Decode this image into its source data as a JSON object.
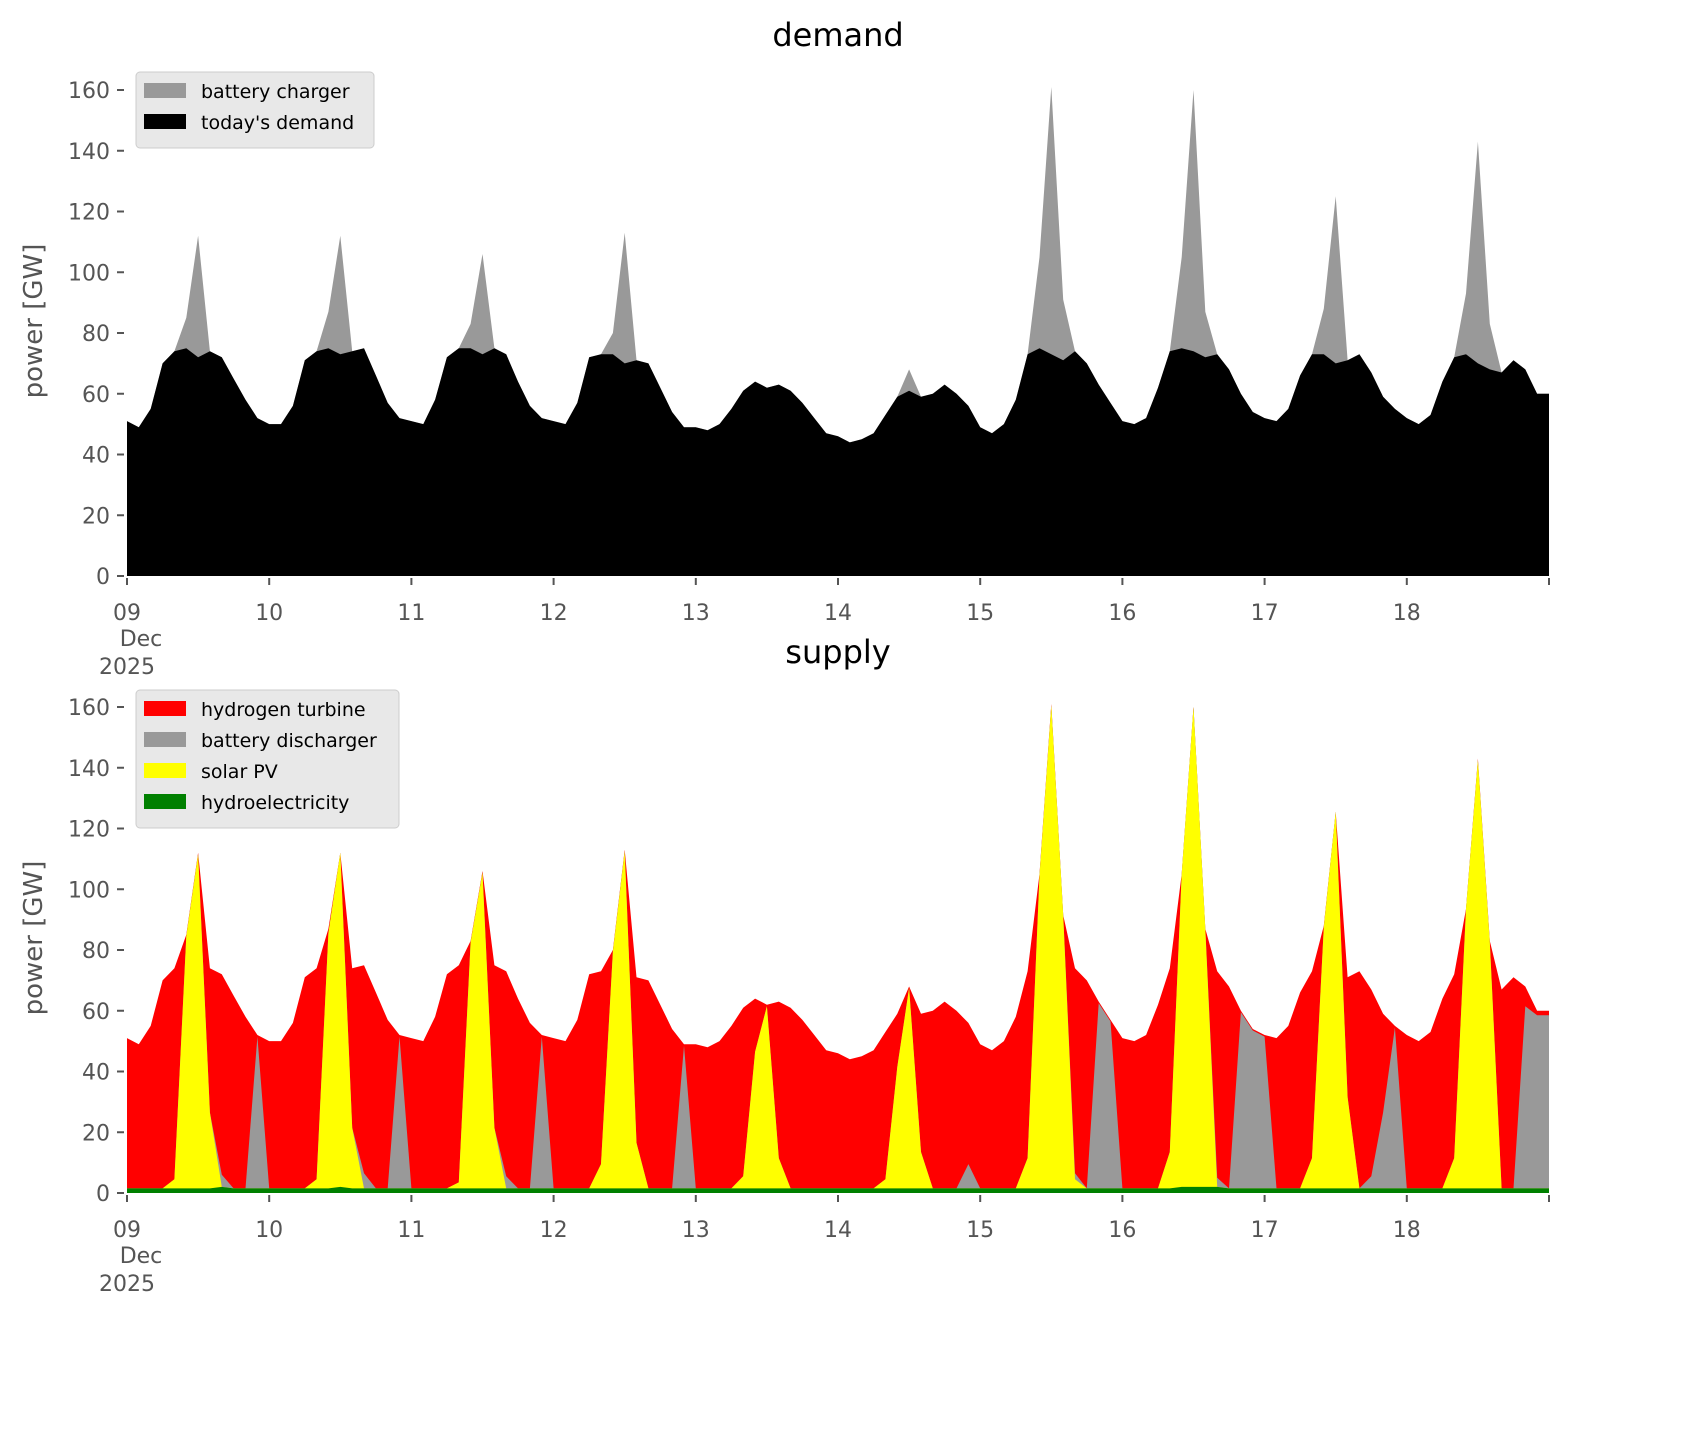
{
  "chart_data": {
    "type": "area",
    "time_step_hours": 2,
    "x_range_days": [
      0,
      10
    ],
    "xticks": [
      {
        "label": "09",
        "sub1": "Dec",
        "sub2": "2025"
      },
      {
        "label": "10"
      },
      {
        "label": "11"
      },
      {
        "label": "12"
      },
      {
        "label": "13"
      },
      {
        "label": "14"
      },
      {
        "label": "15"
      },
      {
        "label": "16"
      },
      {
        "label": "17"
      },
      {
        "label": "18"
      }
    ],
    "yticks": [
      0,
      20,
      40,
      60,
      80,
      100,
      120,
      140,
      160
    ],
    "ylim": [
      0,
      168
    ],
    "panels": [
      {
        "title": "demand",
        "ylabel": "power [GW]",
        "legend_position": "top-left",
        "legend": [
          {
            "label": "battery charger",
            "color": "#999999"
          },
          {
            "label": "today's demand",
            "color": "#000000"
          }
        ]
      },
      {
        "title": "supply",
        "ylabel": "power [GW]",
        "legend_position": "top-left",
        "legend": [
          {
            "label": "hydrogen turbine",
            "color": "#ff0000"
          },
          {
            "label": "battery discharger",
            "color": "#999999"
          },
          {
            "label": "solar PV",
            "color": "#ffff00"
          },
          {
            "label": "hydroelectricity",
            "color": "#008000"
          }
        ]
      }
    ],
    "days": [
      {
        "day": "09",
        "demand": [
          51,
          49,
          55,
          70,
          74,
          75,
          72,
          74,
          72,
          65,
          58,
          52
        ],
        "charger": [
          0,
          0,
          0,
          0,
          0,
          10,
          40,
          0,
          0,
          0,
          0,
          0
        ],
        "solar": [
          0,
          0,
          0,
          0,
          3,
          83,
          110,
          25,
          0,
          0,
          0,
          0
        ],
        "discharger": [
          0,
          0,
          0,
          0,
          0,
          0,
          0,
          0,
          4,
          0,
          0,
          50
        ],
        "hydro": [
          1.5,
          1.5,
          1.5,
          1.5,
          1.5,
          1.5,
          1.5,
          1.5,
          2,
          1.5,
          1.5,
          1.5
        ]
      },
      {
        "day": "10",
        "demand": [
          50,
          50,
          56,
          71,
          74,
          75,
          73,
          74,
          75,
          66,
          57,
          52
        ],
        "charger": [
          0,
          0,
          0,
          0,
          0,
          12,
          39,
          0,
          0,
          0,
          0,
          0
        ],
        "solar": [
          0,
          0,
          0,
          0,
          3,
          84,
          110,
          20,
          0,
          0,
          0,
          0
        ],
        "discharger": [
          0,
          0,
          0,
          0,
          0,
          0,
          0,
          0,
          5,
          0,
          0,
          50
        ],
        "hydro": [
          1.5,
          1.5,
          1.5,
          1.5,
          1.5,
          1.5,
          2,
          1.5,
          1.5,
          1.5,
          1.5,
          1.5
        ]
      },
      {
        "day": "11",
        "demand": [
          51,
          50,
          58,
          72,
          75,
          75,
          73,
          75,
          73,
          64,
          56,
          52
        ],
        "charger": [
          0,
          0,
          0,
          0,
          0,
          8,
          33,
          0,
          0,
          0,
          0,
          0
        ],
        "solar": [
          0,
          0,
          0,
          0,
          2,
          81,
          104,
          20,
          0,
          0,
          0,
          0
        ],
        "discharger": [
          0,
          0,
          0,
          0,
          0,
          0,
          0,
          0,
          4,
          0,
          0,
          50
        ],
        "hydro": [
          1.5,
          1.5,
          1.5,
          1.5,
          1.5,
          1.5,
          1.5,
          1.5,
          1.5,
          1.5,
          1.5,
          1.5
        ]
      },
      {
        "day": "12",
        "demand": [
          51,
          50,
          57,
          72,
          73,
          73,
          70,
          71,
          70,
          62,
          54,
          49
        ],
        "charger": [
          0,
          0,
          0,
          0,
          0,
          7,
          43,
          0,
          0,
          0,
          0,
          0
        ],
        "solar": [
          0,
          0,
          0,
          0,
          8,
          78,
          111,
          15,
          0,
          0,
          0,
          0
        ],
        "discharger": [
          0,
          0,
          0,
          0,
          0,
          0,
          0,
          0,
          0,
          0,
          0,
          47
        ],
        "hydro": [
          1.5,
          1.5,
          1.5,
          1.5,
          1.5,
          1.5,
          1.5,
          1.5,
          1.5,
          1.5,
          1.5,
          1.5
        ]
      },
      {
        "day": "13",
        "demand": [
          49,
          48,
          50,
          55,
          61,
          64,
          62,
          63,
          61,
          57,
          52,
          47
        ],
        "charger": [
          0,
          0,
          0,
          0,
          0,
          0,
          0,
          0,
          0,
          0,
          0,
          0
        ],
        "solar": [
          0,
          0,
          0,
          0,
          4,
          45,
          60,
          10,
          0,
          0,
          0,
          0
        ],
        "discharger": [
          0,
          0,
          0,
          0,
          0,
          0,
          0,
          0,
          0,
          0,
          0,
          0
        ],
        "hydro": [
          1.5,
          1.5,
          1.5,
          1.5,
          1.5,
          1.5,
          1.5,
          1.5,
          1.5,
          1.5,
          1.5,
          1.5
        ]
      },
      {
        "day": "14",
        "demand": [
          46,
          44,
          45,
          47,
          53,
          59,
          61,
          59,
          60,
          63,
          60,
          56
        ],
        "charger": [
          0,
          0,
          0,
          0,
          0,
          0,
          7,
          0,
          0,
          0,
          0,
          0
        ],
        "solar": [
          0,
          0,
          0,
          0,
          3,
          40,
          66,
          12,
          0,
          0,
          0,
          0
        ],
        "discharger": [
          0,
          0,
          0,
          0,
          0,
          0,
          0,
          0,
          0,
          0,
          0,
          8
        ],
        "hydro": [
          1.5,
          1.5,
          1.5,
          1.5,
          1.5,
          1.5,
          1.5,
          1.5,
          1.5,
          1.5,
          1.5,
          1.5
        ]
      },
      {
        "day": "15",
        "demand": [
          49,
          47,
          50,
          58,
          73,
          75,
          73,
          71,
          74,
          70,
          63,
          57
        ],
        "charger": [
          0,
          0,
          0,
          0,
          0,
          30,
          88,
          20,
          0,
          0,
          0,
          0
        ],
        "solar": [
          0,
          0,
          0,
          0,
          10,
          103,
          159,
          90,
          3,
          0,
          0,
          0
        ],
        "discharger": [
          0,
          0,
          0,
          0,
          0,
          0,
          0,
          0,
          2,
          0,
          61,
          55
        ],
        "hydro": [
          1.5,
          1.5,
          1.5,
          1.5,
          1.5,
          1.5,
          1.5,
          1.5,
          1.5,
          1.5,
          1.5,
          1.5
        ]
      },
      {
        "day": "16",
        "demand": [
          51,
          50,
          52,
          62,
          74,
          75,
          74,
          72,
          73,
          68,
          60,
          54
        ],
        "charger": [
          0,
          0,
          0,
          0,
          0,
          30,
          86,
          15,
          0,
          0,
          0,
          0
        ],
        "solar": [
          0,
          0,
          0,
          0,
          12,
          103,
          158,
          85,
          0,
          0,
          0,
          0
        ],
        "discharger": [
          0,
          0,
          0,
          0,
          0,
          0,
          0,
          0,
          3,
          0,
          58,
          52
        ],
        "hydro": [
          1.5,
          1.5,
          1.5,
          1.5,
          1.5,
          2,
          2,
          2,
          2,
          1.5,
          1.5,
          1.5
        ]
      },
      {
        "day": "17",
        "demand": [
          52,
          51,
          55,
          66,
          73,
          73,
          70,
          71,
          73,
          67,
          59,
          55
        ],
        "charger": [
          0,
          0,
          0,
          0,
          0,
          15,
          55,
          0,
          0,
          0,
          0,
          0
        ],
        "solar": [
          0,
          0,
          0,
          0,
          10,
          86,
          124,
          30,
          0,
          0,
          0,
          0
        ],
        "discharger": [
          50,
          0,
          0,
          0,
          0,
          0,
          0,
          0,
          0,
          4,
          25,
          53
        ],
        "hydro": [
          1.5,
          1.5,
          1.5,
          1.5,
          1.5,
          1.5,
          1.5,
          1.5,
          1.5,
          1.5,
          1.5,
          1.5
        ]
      },
      {
        "day": "18",
        "demand": [
          52,
          50,
          53,
          64,
          72,
          73,
          70,
          68,
          67,
          71,
          68,
          60
        ],
        "charger": [
          0,
          0,
          0,
          0,
          0,
          20,
          73,
          15,
          0,
          0,
          0,
          0
        ],
        "solar": [
          0,
          0,
          0,
          0,
          10,
          92,
          141,
          81,
          0,
          0,
          0,
          0
        ],
        "discharger": [
          0,
          0,
          0,
          0,
          0,
          0,
          0,
          0,
          0,
          0,
          60,
          57
        ],
        "hydro": [
          1.5,
          1.5,
          1.5,
          1.5,
          1.5,
          1.5,
          1.5,
          1.5,
          1.5,
          1.5,
          1.5,
          1.5
        ]
      }
    ]
  }
}
